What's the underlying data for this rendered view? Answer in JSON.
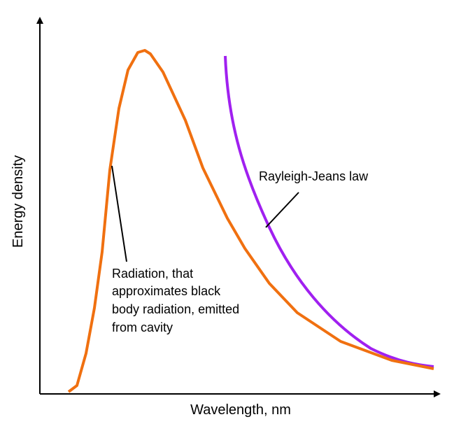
{
  "title": null,
  "axes": {
    "x_label": "Wavelength, nm",
    "y_label": "Energy density"
  },
  "annotations": [
    {
      "lines": [
        "Rayleigh-Jeans law"
      ]
    },
    {
      "lines": [
        "Radiation, that",
        "approximates black",
        "body radiation, emitted",
        "from cavity"
      ]
    }
  ]
}
